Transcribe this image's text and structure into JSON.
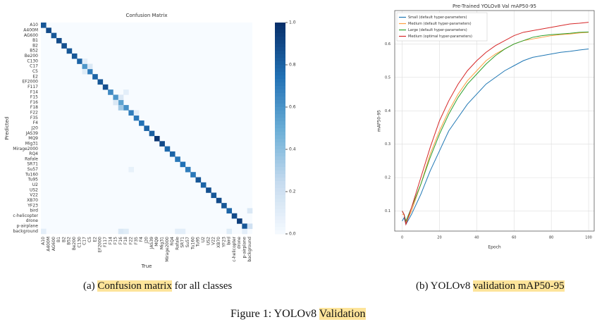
{
  "chart_data": [
    {
      "type": "heatmap",
      "title": "Confusion Matrix",
      "x_label": "True",
      "y_label": "Predicted",
      "categories": [
        "A10",
        "A400M",
        "AG600",
        "B1",
        "B2",
        "B52",
        "Be200",
        "C130",
        "C17",
        "C5",
        "E2",
        "EF2000",
        "F117",
        "F14",
        "F15",
        "F16",
        "F18",
        "F22",
        "F35",
        "F4",
        "J20",
        "JAS39",
        "MQ9",
        "Mig31",
        "Mirage2000",
        "RQ4",
        "Rafale",
        "SR71",
        "Su57",
        "Tu160",
        "Tu95",
        "U2",
        "US2",
        "V22",
        "XB70",
        "YF23",
        "bird",
        "c-helicopter",
        "drone",
        "p-airplane",
        "background"
      ],
      "diagonal": [
        0.85,
        0.9,
        0.85,
        0.9,
        0.88,
        0.85,
        0.85,
        0.8,
        0.6,
        0.7,
        0.8,
        0.85,
        0.88,
        0.65,
        0.6,
        0.55,
        0.62,
        0.7,
        0.72,
        0.75,
        0.8,
        0.82,
        0.98,
        0.9,
        0.78,
        0.8,
        0.72,
        0.75,
        0.7,
        0.72,
        0.85,
        0.8,
        0.88,
        0.85,
        0.9,
        0.85,
        0.8,
        0.9,
        0.95,
        0.85,
        null
      ],
      "cells": [
        {
          "row": "F18",
          "col": "F16",
          "value": 0.35
        },
        {
          "row": "F15",
          "col": "F16",
          "value": 0.15
        },
        {
          "row": "F16",
          "col": "F15",
          "value": 0.15
        },
        {
          "row": "F14",
          "col": "F18",
          "value": 0.1
        },
        {
          "row": "C17",
          "col": "C5",
          "value": 0.15
        },
        {
          "row": "C5",
          "col": "C17",
          "value": 0.12
        },
        {
          "row": "C130",
          "col": "C17",
          "value": 0.1
        },
        {
          "row": "F22",
          "col": "F35",
          "value": 0.1
        },
        {
          "row": "Su57",
          "col": "F22",
          "value": 0.08
        },
        {
          "row": "bird",
          "col": "background",
          "value": 0.15
        },
        {
          "row": "p-airplane",
          "col": "background",
          "value": 0.2
        },
        {
          "row": "background",
          "col": "A10",
          "value": 0.1
        },
        {
          "row": "background",
          "col": "F16",
          "value": 0.15
        },
        {
          "row": "background",
          "col": "F18",
          "value": 0.12
        },
        {
          "row": "background",
          "col": "Rafale",
          "value": 0.1
        },
        {
          "row": "background",
          "col": "SR71",
          "value": 0.1
        },
        {
          "row": "background",
          "col": "bird",
          "value": 0.12
        },
        {
          "row": "background",
          "col": "p-airplane",
          "value": 0.1
        }
      ],
      "colormap": [
        "#f7fbff",
        "#c6dbef",
        "#6baed6",
        "#2171b5",
        "#08306b"
      ],
      "clim": [
        0,
        1
      ],
      "cticks": [
        {
          "value": 0,
          "label": "0.0"
        },
        0.2,
        0.4,
        0.6,
        0.8,
        {
          "value": 1,
          "label": "1.0"
        }
      ]
    },
    {
      "type": "line",
      "title": "Pre-Trained YOLOv8 Val mAP50-95",
      "x_label": "Epoch",
      "y_label": "mAP50-95",
      "x": [
        0,
        1,
        2,
        5,
        10,
        15,
        20,
        25,
        30,
        35,
        40,
        45,
        50,
        55,
        60,
        65,
        70,
        75,
        80,
        85,
        90,
        95,
        100
      ],
      "series": [
        {
          "name": "Small (default hyper-parameters)",
          "color": "#1f77b4",
          "values": [
            0.07,
            0.08,
            0.06,
            0.09,
            0.15,
            0.22,
            0.28,
            0.34,
            0.38,
            0.42,
            0.45,
            0.48,
            0.5,
            0.52,
            0.535,
            0.55,
            0.56,
            0.565,
            0.57,
            0.575,
            0.578,
            0.582,
            0.585
          ]
        },
        {
          "name": "Medium (default hyper-parameters)",
          "color": "#ff9f40",
          "values": [
            0.09,
            0.09,
            0.065,
            0.1,
            0.18,
            0.27,
            0.34,
            0.4,
            0.45,
            0.49,
            0.52,
            0.55,
            0.57,
            0.585,
            0.6,
            0.61,
            0.615,
            0.62,
            0.625,
            0.628,
            0.63,
            0.633,
            0.635
          ]
        },
        {
          "name": "Large (default hyper-parameters)",
          "color": "#2ca02c",
          "values": [
            0.1,
            0.09,
            0.07,
            0.11,
            0.18,
            0.26,
            0.33,
            0.39,
            0.44,
            0.48,
            0.51,
            0.54,
            0.565,
            0.585,
            0.6,
            0.61,
            0.62,
            0.625,
            0.628,
            0.63,
            0.632,
            0.635,
            0.636
          ]
        },
        {
          "name": "Medium (optimal hyper-parameters)",
          "color": "#d62728",
          "values": [
            0.1,
            0.09,
            0.06,
            0.11,
            0.2,
            0.29,
            0.37,
            0.43,
            0.48,
            0.52,
            0.55,
            0.575,
            0.595,
            0.61,
            0.625,
            0.635,
            0.64,
            0.645,
            0.65,
            0.655,
            0.66,
            0.662,
            0.665
          ]
        }
      ],
      "xlim": [
        -4,
        103
      ],
      "ylim": [
        0.04,
        0.7
      ],
      "xticks": [
        0,
        20,
        40,
        60,
        80,
        100
      ],
      "yticks": [
        0.1,
        0.2,
        0.3,
        0.4,
        0.5,
        0.6
      ],
      "grid": true,
      "legend": "upper left"
    }
  ],
  "captions": {
    "a": {
      "label": "(a)",
      "highlight": "Confusion matrix",
      "rest": "for all classes"
    },
    "b": {
      "label": "(b) YOLOv8",
      "highlight": "validation mAP50-95"
    },
    "figure": {
      "label": "Figure 1: YOLOv8",
      "highlight": "Validation"
    }
  }
}
